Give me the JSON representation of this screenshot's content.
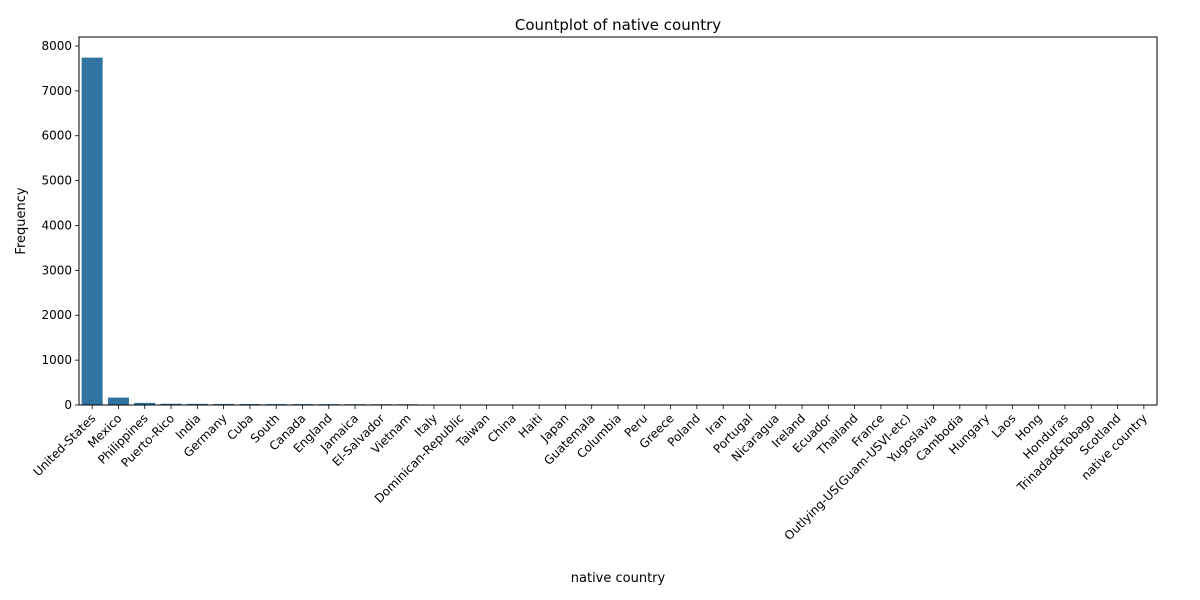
{
  "chart_data": {
    "type": "bar",
    "title": "Countplot of native country",
    "xlabel": "native country",
    "ylabel": "Frequency",
    "ylim": [
      0,
      8200
    ],
    "yticks": [
      0,
      1000,
      2000,
      3000,
      4000,
      5000,
      6000,
      7000,
      8000
    ],
    "grid": false,
    "bar_color": "#3274a1",
    "categories": [
      "United-States",
      "Mexico",
      "Philippines",
      "Puerto-Rico",
      "India",
      "Germany",
      "Cuba",
      "South",
      "Canada",
      "England",
      "Jamaica",
      "El-Salvador",
      "Vietnam",
      "Italy",
      "Dominican-Republic",
      "Taiwan",
      "China",
      "Haiti",
      "Japan",
      "Guatemala",
      "Columbia",
      "Peru",
      "Greece",
      "Poland",
      "Iran",
      "Portugal",
      "Nicaragua",
      "Ireland",
      "Ecuador",
      "Thailand",
      "France",
      "Outlying-US(Guam-USVI-etc)",
      "Yugoslavia",
      "Cambodia",
      "Hungary",
      "Laos",
      "Hong",
      "Honduras",
      "Trinadad&Tobago",
      "Scotland",
      "native country"
    ],
    "values": [
      7740,
      165,
      48,
      28,
      26,
      24,
      22,
      21,
      20,
      19,
      18,
      17,
      16,
      9,
      8,
      8,
      7,
      7,
      6,
      6,
      5,
      5,
      4,
      4,
      4,
      3,
      3,
      3,
      3,
      3,
      3,
      2,
      2,
      2,
      2,
      2,
      2,
      1,
      1,
      1,
      1
    ]
  }
}
